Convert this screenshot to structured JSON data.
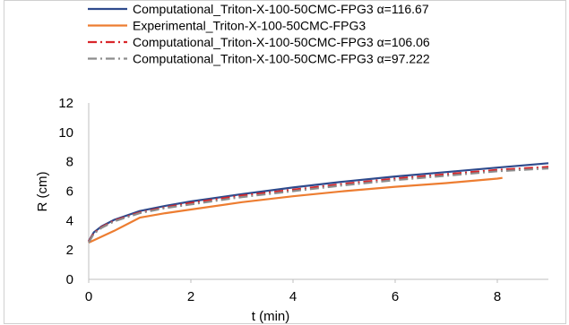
{
  "chart_data": {
    "type": "line",
    "title": "",
    "xlabel": "t (min)",
    "ylabel": "R (cm)",
    "xlim": [
      0,
      9
    ],
    "ylim": [
      0,
      12
    ],
    "xticks": [
      0,
      2,
      4,
      6,
      8
    ],
    "yticks": [
      0,
      2,
      4,
      6,
      8,
      10,
      12
    ],
    "grid": false,
    "legend_position": "top",
    "series": [
      {
        "name": "Computational_Triton-X-100-50CMC-FPG3 α=116.67",
        "color": "#2e4a8c",
        "style": "solid",
        "x": [
          0,
          0.1,
          0.25,
          0.5,
          1,
          1.5,
          2,
          3,
          4,
          5,
          6,
          7,
          8,
          9
        ],
        "y": [
          2.6,
          3.2,
          3.6,
          4.05,
          4.65,
          5.0,
          5.3,
          5.8,
          6.25,
          6.65,
          7.0,
          7.3,
          7.6,
          7.9
        ]
      },
      {
        "name": "Experimental_Triton-X-100-50CMC-FPG3",
        "color": "#ed7d31",
        "style": "solid",
        "x": [
          0,
          0.5,
          1,
          1.5,
          2,
          3,
          4,
          5,
          6,
          7,
          8,
          8.1
        ],
        "y": [
          2.5,
          3.3,
          4.2,
          4.5,
          4.75,
          5.25,
          5.65,
          6.0,
          6.3,
          6.55,
          6.85,
          6.9
        ]
      },
      {
        "name": "Computational_Triton-X-100-50CMC-FPG3 α=106.06",
        "color": "#d9262b",
        "style": "dash-dot",
        "x": [
          0,
          0.1,
          0.25,
          0.5,
          1,
          1.5,
          2,
          3,
          4,
          5,
          6,
          7,
          8,
          9
        ],
        "y": [
          2.55,
          3.15,
          3.55,
          4.0,
          4.55,
          4.9,
          5.2,
          5.7,
          6.1,
          6.5,
          6.85,
          7.15,
          7.45,
          7.65
        ]
      },
      {
        "name": "Computational_Triton-X-100-50CMC-FPG3 α=97.222",
        "color": "#8c8c8c",
        "style": "dash-dot",
        "x": [
          0,
          0.1,
          0.25,
          0.5,
          1,
          1.5,
          2,
          3,
          4,
          5,
          6,
          7,
          8,
          9
        ],
        "y": [
          2.5,
          3.1,
          3.5,
          3.95,
          4.5,
          4.85,
          5.1,
          5.6,
          6.0,
          6.4,
          6.75,
          7.05,
          7.35,
          7.55
        ]
      }
    ]
  }
}
